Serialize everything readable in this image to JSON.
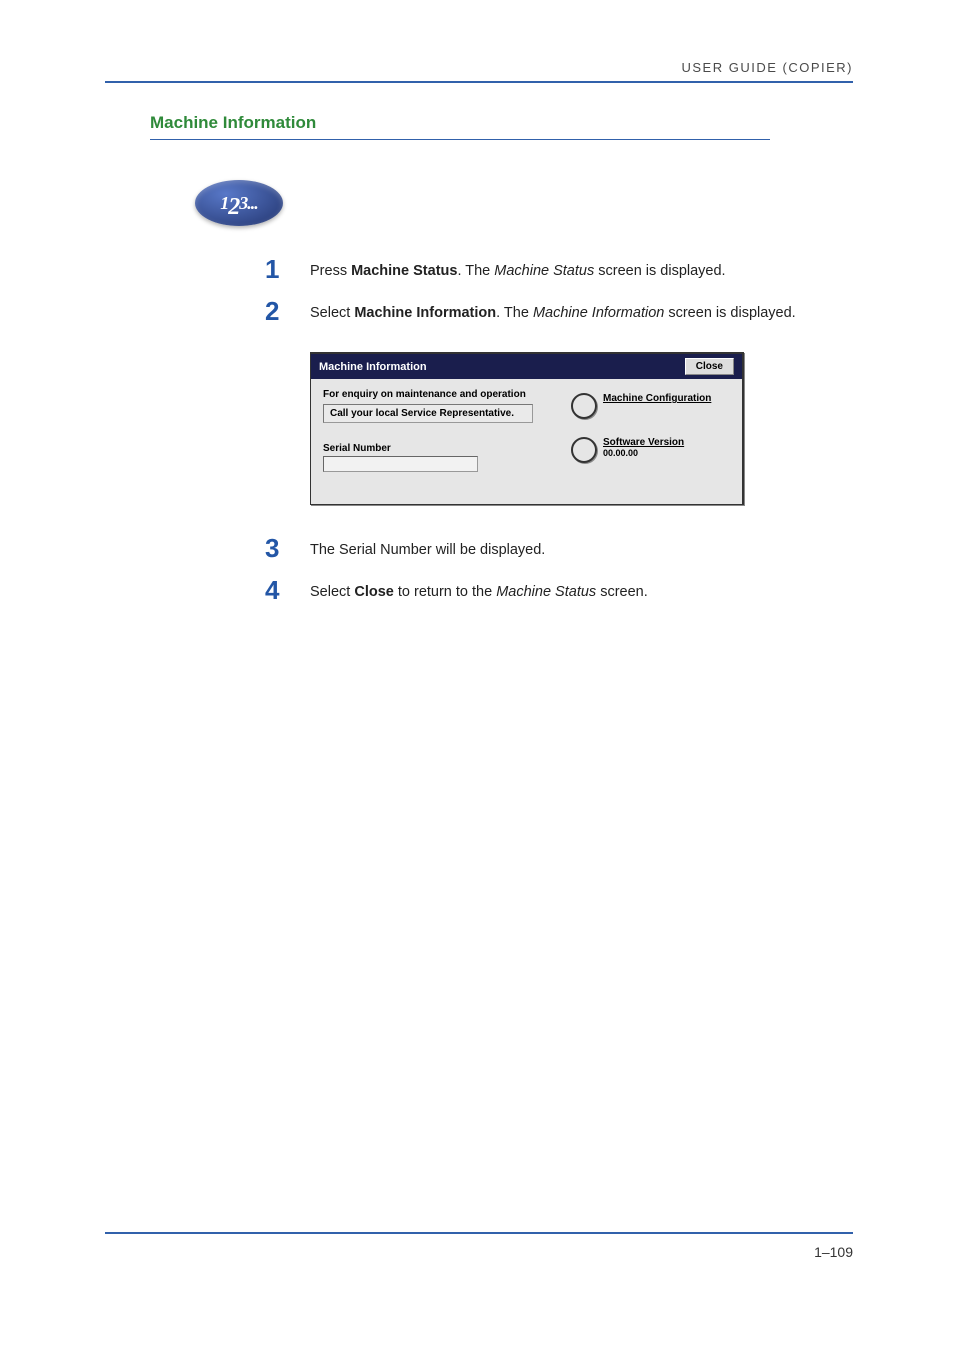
{
  "header": {
    "text": "USER GUIDE (COPIER)",
    "rule_color": "#3161ab"
  },
  "section": {
    "title": "Machine Information",
    "title_color": "#2f8a3a"
  },
  "steps_icon": {
    "digits": "123..."
  },
  "steps": [
    {
      "num": "1",
      "html": "Press <b>Machine Status</b>. The <i>Machine Status</i> screen is displayed."
    },
    {
      "num": "2",
      "html": "Select <b>Machine Information</b>. The <i>Machine Information</i> screen is displayed."
    },
    {
      "num": "3",
      "html": "The Serial Number will be displayed."
    },
    {
      "num": "4",
      "html": "Select <b>Close</b> to return to the <i>Machine Status</i> screen."
    }
  ],
  "screenshot": {
    "title": "Machine Information",
    "close": "Close",
    "enquiry_text": "For enquiry on maintenance and operation",
    "call_text": "Call your local Service Representative.",
    "serial_label": "Serial Number",
    "config_label": "Machine Configuration",
    "version_label": "Software Version",
    "version_value": "00.00.00"
  },
  "footer": {
    "page": "1–109"
  },
  "colors": {
    "step_num": "#2356a6",
    "body_text": "#222222",
    "rule": "#3161ab"
  }
}
